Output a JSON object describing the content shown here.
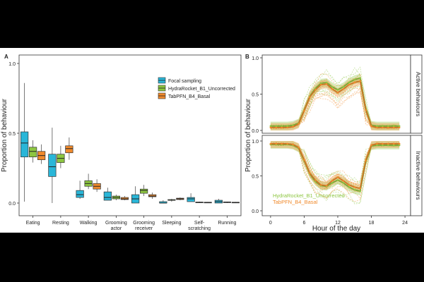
{
  "chart_data": [
    {
      "panel": "A",
      "type": "box",
      "ylabel": "Proportion of behaviour",
      "xlabel": "",
      "ylim": [
        0,
        1
      ],
      "yticks": [
        "0.0",
        "0.5",
        "1.0"
      ],
      "yticks_values": [
        0,
        0.5,
        1
      ],
      "legend_position": "top-right",
      "categories": [
        [
          "Eating"
        ],
        [
          "Resting"
        ],
        [
          "Walking"
        ],
        [
          "Grooming",
          "actor"
        ],
        [
          "Grooming",
          "receiver"
        ],
        [
          "Sleeping"
        ],
        [
          "Self-",
          "scratching"
        ],
        [
          "Running"
        ]
      ],
      "series": [
        {
          "name": "Focal sampling",
          "color": "#29b6d8",
          "stats": [
            [
              0.01,
              0.33,
              0.43,
              0.51,
              0.86
            ],
            [
              0,
              0.19,
              0.26,
              0.35,
              0.54
            ],
            [
              0.03,
              0.04,
              0.06,
              0.09,
              0.16
            ],
            [
              0.02,
              0.02,
              0.04,
              0.08,
              0.11
            ],
            [
              0,
              0,
              0.03,
              0.06,
              0.12
            ],
            [
              0,
              0,
              0,
              0.01,
              0.02
            ],
            [
              0.01,
              0.01,
              0.03,
              0.04,
              0.07
            ],
            [
              0,
              0,
              0.01,
              0.02,
              0.03
            ]
          ]
        },
        {
          "name": "HydraRocket_B1_Uncorrected",
          "color": "#8dc641",
          "stats": [
            [
              0.29,
              0.33,
              0.37,
              0.4,
              0.45
            ],
            [
              0.25,
              0.29,
              0.32,
              0.35,
              0.41
            ],
            [
              0.1,
              0.12,
              0.14,
              0.16,
              0.21
            ],
            [
              0.02,
              0.03,
              0.04,
              0.05,
              0.06
            ],
            [
              0.05,
              0.07,
              0.09,
              0.1,
              0.13
            ],
            [
              0.01,
              0.02,
              0.02,
              0.025,
              0.03
            ],
            [
              0,
              0.003,
              0.005,
              0.007,
              0.01
            ],
            [
              0,
              0.003,
              0.005,
              0.008,
              0.01
            ]
          ]
        },
        {
          "name": "TabPFN_B4_Basal",
          "color": "#f08a2c",
          "stats": [
            [
              0.28,
              0.31,
              0.34,
              0.37,
              0.42
            ],
            [
              0.31,
              0.36,
              0.39,
              0.41,
              0.47
            ],
            [
              0.08,
              0.1,
              0.12,
              0.14,
              0.17
            ],
            [
              0.02,
              0.025,
              0.03,
              0.04,
              0.05
            ],
            [
              0.03,
              0.045,
              0.05,
              0.06,
              0.075
            ],
            [
              0.02,
              0.025,
              0.03,
              0.035,
              0.04
            ],
            [
              0,
              0.002,
              0.004,
              0.006,
              0.008
            ],
            [
              0,
              0.002,
              0.004,
              0.006,
              0.008
            ]
          ]
        }
      ]
    },
    {
      "panel": "B",
      "type": "line",
      "ylabel": "Proportion of behaviour",
      "xlabel": "Hour of the day",
      "xlim": [
        -1.5,
        25
      ],
      "xticks": [
        0,
        6,
        12,
        18,
        24
      ],
      "legend_position": "bottom-left",
      "legend": [
        {
          "name": "HydraRocket_B1_Uncorrected",
          "color": "#8dc641"
        },
        {
          "name": "TabPFN_B4_Basal",
          "color": "#f08a2c"
        }
      ],
      "facets": [
        {
          "label": "Active behaviours",
          "ylim": [
            0,
            1
          ],
          "yticks": [
            "0.0",
            "0.5",
            "1.0"
          ],
          "yticks_values": [
            0,
            0.5,
            1
          ],
          "x": [
            0,
            1,
            2,
            3,
            4,
            5,
            6,
            7,
            8,
            9,
            10,
            11,
            12,
            13,
            14,
            15,
            16,
            17,
            18,
            19,
            20,
            21,
            22,
            23
          ],
          "series": [
            {
              "name": "HydraRocket_B1_Uncorrected",
              "color": "#8dc641",
              "values": [
                0.06,
                0.06,
                0.06,
                0.06,
                0.07,
                0.1,
                0.28,
                0.47,
                0.58,
                0.65,
                0.66,
                0.6,
                0.56,
                0.6,
                0.66,
                0.7,
                0.72,
                0.3,
                0.07,
                0.06,
                0.06,
                0.06,
                0.06,
                0.06
              ]
            },
            {
              "name": "TabPFN_B4_Basal",
              "color": "#f08a2c",
              "values": [
                0.04,
                0.04,
                0.04,
                0.04,
                0.05,
                0.09,
                0.27,
                0.46,
                0.56,
                0.63,
                0.64,
                0.57,
                0.52,
                0.57,
                0.63,
                0.66,
                0.68,
                0.28,
                0.06,
                0.04,
                0.04,
                0.04,
                0.04,
                0.04
              ]
            }
          ]
        },
        {
          "label": "Inactive behaviours",
          "ylim": [
            0,
            1
          ],
          "yticks": [
            "0.0",
            "0.5",
            "1.0"
          ],
          "yticks_values": [
            0,
            0.5,
            1
          ],
          "x": [
            0,
            1,
            2,
            3,
            4,
            5,
            6,
            7,
            8,
            9,
            10,
            11,
            12,
            13,
            14,
            15,
            16,
            17,
            18,
            19,
            20,
            21,
            22,
            23
          ],
          "series": [
            {
              "name": "HydraRocket_B1_Uncorrected",
              "color": "#8dc641",
              "values": [
                0.95,
                0.95,
                0.95,
                0.95,
                0.94,
                0.9,
                0.72,
                0.53,
                0.42,
                0.36,
                0.35,
                0.4,
                0.44,
                0.4,
                0.34,
                0.3,
                0.28,
                0.7,
                0.93,
                0.94,
                0.94,
                0.94,
                0.94,
                0.94
              ]
            },
            {
              "name": "TabPFN_B4_Basal",
              "color": "#f08a2c",
              "values": [
                0.96,
                0.96,
                0.96,
                0.96,
                0.95,
                0.91,
                0.73,
                0.54,
                0.44,
                0.37,
                0.36,
                0.43,
                0.48,
                0.43,
                0.37,
                0.34,
                0.32,
                0.72,
                0.94,
                0.96,
                0.96,
                0.96,
                0.96,
                0.96
              ]
            }
          ]
        }
      ]
    }
  ]
}
